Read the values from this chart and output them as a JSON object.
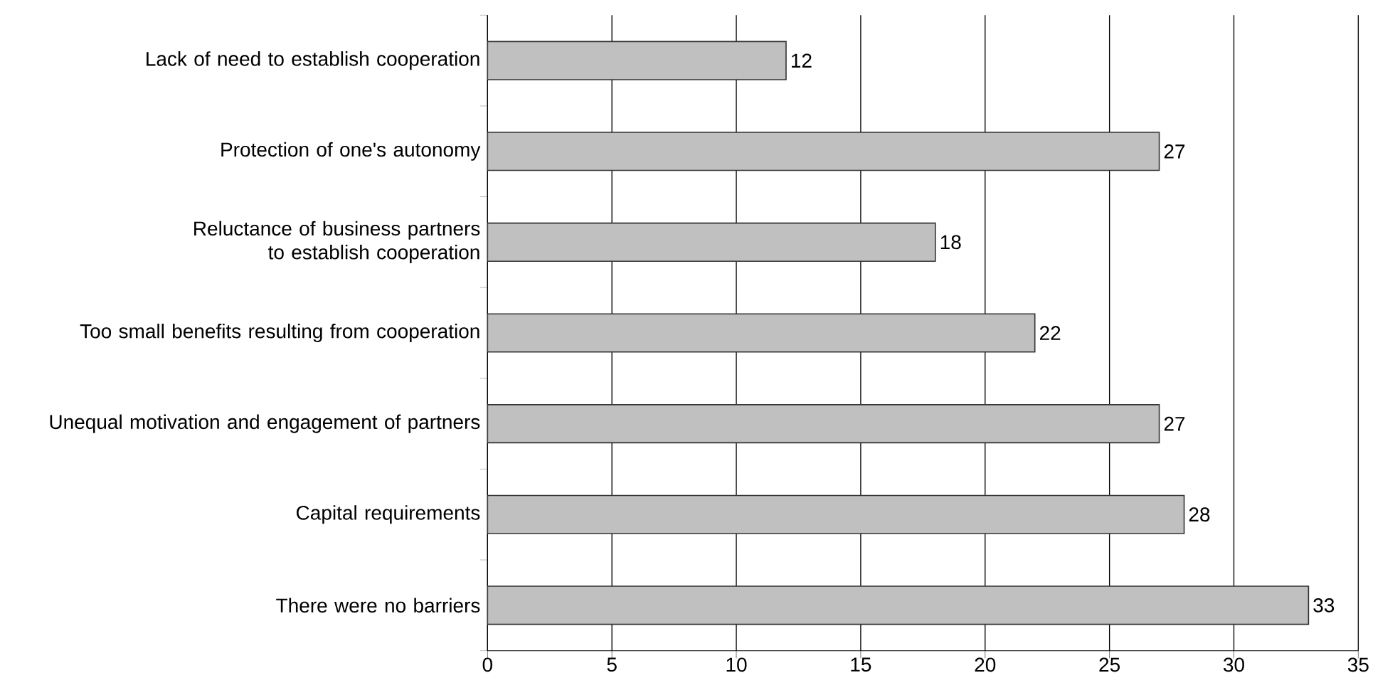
{
  "chart_data": {
    "type": "bar",
    "orientation": "horizontal",
    "categories": [
      "Lack of need to establish cooperation",
      "Protection of one's autonomy",
      "Reluctance of business partners to establish cooperation",
      "Too small benefits resulting from cooperation",
      "Unequal motivation and engagement of partners",
      "Capital requirements",
      "There were no barriers"
    ],
    "values": [
      12,
      27,
      18,
      22,
      27,
      28,
      33
    ],
    "color": "#c0c0c0",
    "xlim": [
      0,
      35
    ],
    "xticks": [
      0,
      5,
      10,
      15,
      20,
      25,
      30,
      35
    ],
    "grid": "x",
    "data_labels": true
  }
}
